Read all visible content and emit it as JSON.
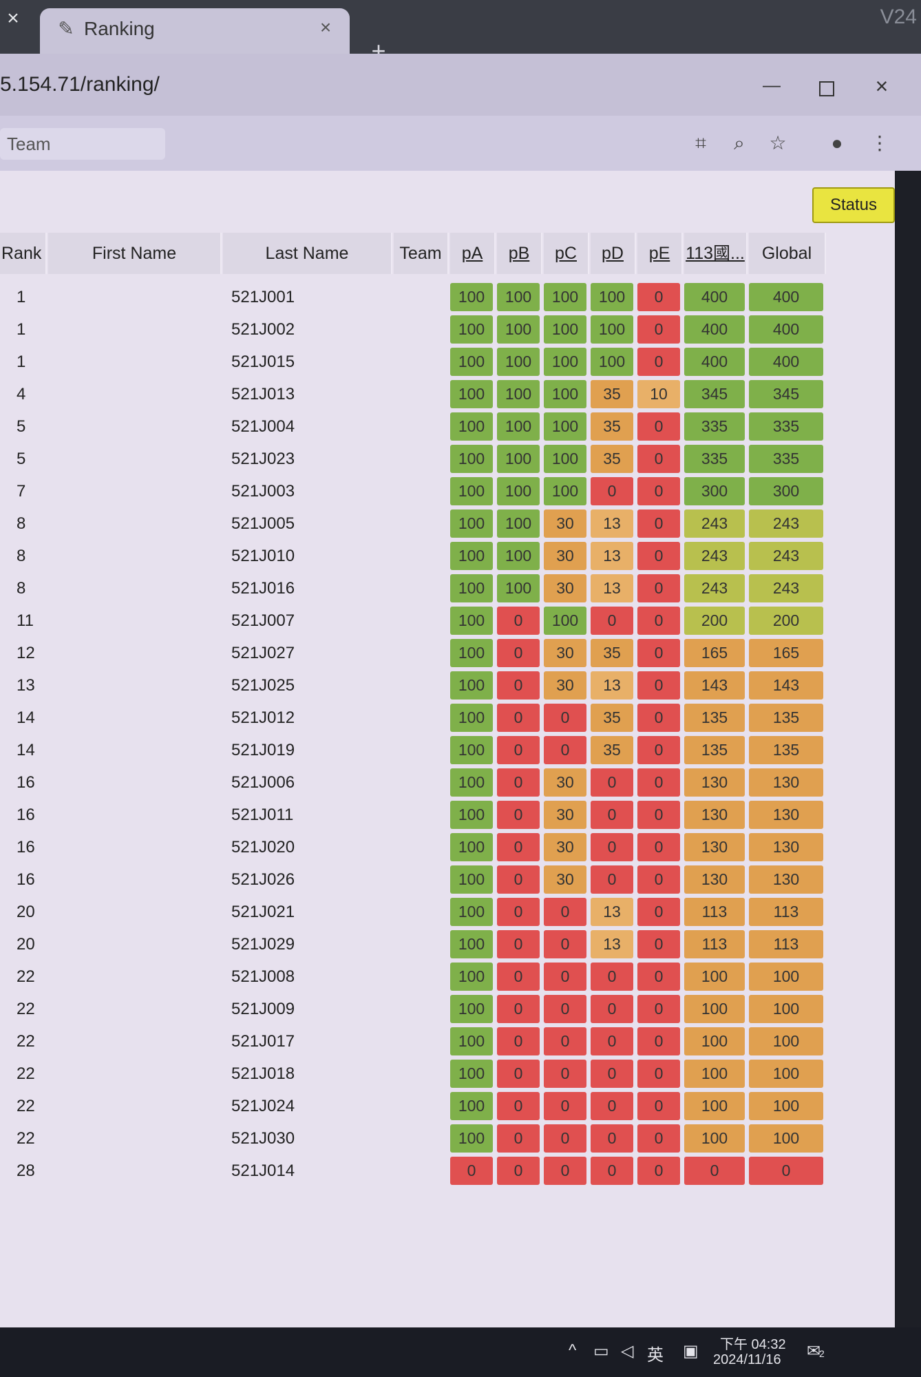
{
  "browser": {
    "tab_title": "Ranking",
    "url": "5.154.71/ranking/",
    "corner_text": "V24"
  },
  "page": {
    "search_value": "Team",
    "status_label": "Status"
  },
  "table": {
    "columns": {
      "rank": "Rank",
      "first_name": "First Name",
      "last_name": "Last Name",
      "team": "Team",
      "pA": "pA",
      "pB": "pB",
      "pC": "pC",
      "pD": "pD",
      "pE": "pE",
      "contest": "113國...",
      "global": "Global"
    },
    "rows": [
      {
        "rank": "1",
        "last_name": "521J001",
        "scores": [
          "100",
          "100",
          "100",
          "100",
          "0",
          "400",
          "400"
        ]
      },
      {
        "rank": "1",
        "last_name": "521J002",
        "scores": [
          "100",
          "100",
          "100",
          "100",
          "0",
          "400",
          "400"
        ]
      },
      {
        "rank": "1",
        "last_name": "521J015",
        "scores": [
          "100",
          "100",
          "100",
          "100",
          "0",
          "400",
          "400"
        ]
      },
      {
        "rank": "4",
        "last_name": "521J013",
        "scores": [
          "100",
          "100",
          "100",
          "35",
          "10",
          "345",
          "345"
        ]
      },
      {
        "rank": "5",
        "last_name": "521J004",
        "scores": [
          "100",
          "100",
          "100",
          "35",
          "0",
          "335",
          "335"
        ]
      },
      {
        "rank": "5",
        "last_name": "521J023",
        "scores": [
          "100",
          "100",
          "100",
          "35",
          "0",
          "335",
          "335"
        ]
      },
      {
        "rank": "7",
        "last_name": "521J003",
        "scores": [
          "100",
          "100",
          "100",
          "0",
          "0",
          "300",
          "300"
        ]
      },
      {
        "rank": "8",
        "last_name": "521J005",
        "scores": [
          "100",
          "100",
          "30",
          "13",
          "0",
          "243",
          "243"
        ]
      },
      {
        "rank": "8",
        "last_name": "521J010",
        "scores": [
          "100",
          "100",
          "30",
          "13",
          "0",
          "243",
          "243"
        ]
      },
      {
        "rank": "8",
        "last_name": "521J016",
        "scores": [
          "100",
          "100",
          "30",
          "13",
          "0",
          "243",
          "243"
        ]
      },
      {
        "rank": "11",
        "last_name": "521J007",
        "scores": [
          "100",
          "0",
          "100",
          "0",
          "0",
          "200",
          "200"
        ]
      },
      {
        "rank": "12",
        "last_name": "521J027",
        "scores": [
          "100",
          "0",
          "30",
          "35",
          "0",
          "165",
          "165"
        ]
      },
      {
        "rank": "13",
        "last_name": "521J025",
        "scores": [
          "100",
          "0",
          "30",
          "13",
          "0",
          "143",
          "143"
        ]
      },
      {
        "rank": "14",
        "last_name": "521J012",
        "scores": [
          "100",
          "0",
          "0",
          "35",
          "0",
          "135",
          "135"
        ]
      },
      {
        "rank": "14",
        "last_name": "521J019",
        "scores": [
          "100",
          "0",
          "0",
          "35",
          "0",
          "135",
          "135"
        ]
      },
      {
        "rank": "16",
        "last_name": "521J006",
        "scores": [
          "100",
          "0",
          "30",
          "0",
          "0",
          "130",
          "130"
        ]
      },
      {
        "rank": "16",
        "last_name": "521J011",
        "scores": [
          "100",
          "0",
          "30",
          "0",
          "0",
          "130",
          "130"
        ]
      },
      {
        "rank": "16",
        "last_name": "521J020",
        "scores": [
          "100",
          "0",
          "30",
          "0",
          "0",
          "130",
          "130"
        ]
      },
      {
        "rank": "16",
        "last_name": "521J026",
        "scores": [
          "100",
          "0",
          "30",
          "0",
          "0",
          "130",
          "130"
        ]
      },
      {
        "rank": "20",
        "last_name": "521J021",
        "scores": [
          "100",
          "0",
          "0",
          "13",
          "0",
          "113",
          "113"
        ]
      },
      {
        "rank": "20",
        "last_name": "521J029",
        "scores": [
          "100",
          "0",
          "0",
          "13",
          "0",
          "113",
          "113"
        ]
      },
      {
        "rank": "22",
        "last_name": "521J008",
        "scores": [
          "100",
          "0",
          "0",
          "0",
          "0",
          "100",
          "100"
        ]
      },
      {
        "rank": "22",
        "last_name": "521J009",
        "scores": [
          "100",
          "0",
          "0",
          "0",
          "0",
          "100",
          "100"
        ]
      },
      {
        "rank": "22",
        "last_name": "521J017",
        "scores": [
          "100",
          "0",
          "0",
          "0",
          "0",
          "100",
          "100"
        ]
      },
      {
        "rank": "22",
        "last_name": "521J018",
        "scores": [
          "100",
          "0",
          "0",
          "0",
          "0",
          "100",
          "100"
        ]
      },
      {
        "rank": "22",
        "last_name": "521J024",
        "scores": [
          "100",
          "0",
          "0",
          "0",
          "0",
          "100",
          "100"
        ]
      },
      {
        "rank": "22",
        "last_name": "521J030",
        "scores": [
          "100",
          "0",
          "0",
          "0",
          "0",
          "100",
          "100"
        ]
      },
      {
        "rank": "28",
        "last_name": "521J014",
        "scores": [
          "0",
          "0",
          "0",
          "0",
          "0",
          "0",
          "0"
        ]
      }
    ]
  },
  "colors": {
    "green": "#7fb04a",
    "yellow_green": "#b8c04e",
    "orange": "#e0a050",
    "light_orange": "#e8b068",
    "red": "#e05050",
    "header_bg": "#dcd7e4",
    "page_bg": "#e7e1ee",
    "status_yellow": "#e9e440"
  },
  "taskbar": {
    "ime": "英",
    "time": "下午 04:32",
    "date": "2024/11/16",
    "notification_count": "2"
  }
}
